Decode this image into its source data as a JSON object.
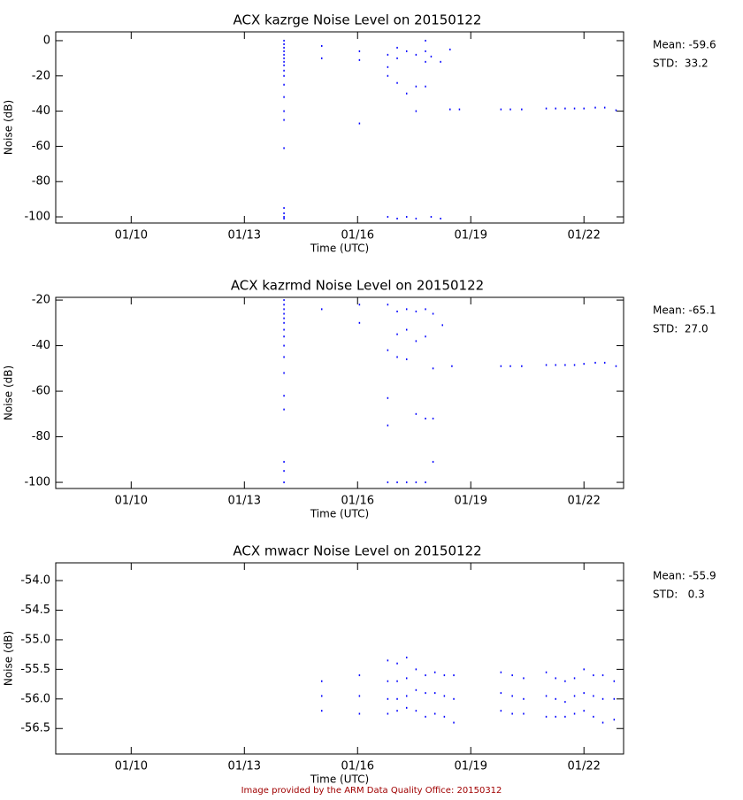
{
  "chart_data": [
    {
      "type": "scatter",
      "title": "ACX kazrge Noise Level on 20150122",
      "xlabel": "Time (UTC)",
      "ylabel": "Noise (dB)",
      "color": "#0000ff",
      "annotations": [
        "Mean: -59.6",
        "STD:  33.2"
      ],
      "xlim": [
        8,
        23.05
      ],
      "ylim": [
        -103.5,
        5
      ],
      "xticks": [
        {
          "value": 10,
          "label": "01/10"
        },
        {
          "value": 13,
          "label": "01/13"
        },
        {
          "value": 16,
          "label": "01/16"
        },
        {
          "value": 19,
          "label": "01/19"
        },
        {
          "value": 22,
          "label": "01/22"
        }
      ],
      "yticks": [
        0,
        -20,
        -40,
        -60,
        -80,
        -100
      ],
      "x": [
        14.05,
        14.05,
        14.05,
        14.05,
        14.05,
        14.05,
        14.05,
        14.05,
        14.05,
        14.05,
        14.05,
        14.05,
        14.05,
        14.05,
        14.05,
        14.05,
        14.05,
        14.05,
        14.05,
        15.05,
        15.05,
        16.05,
        16.05,
        16.05,
        16.8,
        16.8,
        16.8,
        16.8,
        17.05,
        17.05,
        17.05,
        17.05,
        17.3,
        17.3,
        17.3,
        17.55,
        17.55,
        17.55,
        17.55,
        17.8,
        17.8,
        17.8,
        17.8,
        17.95,
        17.95,
        18.2,
        18.2,
        18.45,
        18.45,
        18.7,
        19.8,
        20.05,
        20.35,
        21.0,
        21.25,
        21.5,
        21.75,
        22.0,
        22.3,
        22.55,
        22.85
      ],
      "values": [
        0,
        -2,
        -4,
        -6,
        -8,
        -10,
        -12,
        -14,
        -17,
        -20,
        -25,
        -32,
        -40,
        -45,
        -61,
        -95,
        -98,
        -100,
        -101,
        -3,
        -10,
        -6,
        -11,
        -47,
        -8,
        -15,
        -20,
        -100,
        -4,
        -10,
        -24,
        -101,
        -6,
        -30,
        -100,
        -8,
        -26,
        -40,
        -101,
        0,
        -6,
        -12,
        -26,
        -9,
        -100,
        -12,
        -101,
        -5,
        -39,
        -39,
        -39,
        -39,
        -39,
        -38.5,
        -38.5,
        -38.5,
        -38.5,
        -38.5,
        -38,
        -38,
        -39.5
      ]
    },
    {
      "type": "scatter",
      "title": "ACX kazrmd Noise Level on 20150122",
      "xlabel": "Time (UTC)",
      "ylabel": "Noise (dB)",
      "color": "#0000ff",
      "annotations": [
        "Mean: -65.1",
        "STD:  27.0"
      ],
      "xlim": [
        8,
        23.05
      ],
      "ylim": [
        -102.7,
        -18.8
      ],
      "xticks": [
        {
          "value": 10,
          "label": "01/10"
        },
        {
          "value": 13,
          "label": "01/13"
        },
        {
          "value": 16,
          "label": "01/16"
        },
        {
          "value": 19,
          "label": "01/19"
        },
        {
          "value": 22,
          "label": "01/22"
        }
      ],
      "yticks": [
        -20,
        -40,
        -60,
        -80,
        -100
      ],
      "x": [
        14.05,
        14.05,
        14.05,
        14.05,
        14.05,
        14.05,
        14.05,
        14.05,
        14.05,
        14.05,
        14.05,
        14.05,
        14.05,
        14.05,
        14.05,
        14.05,
        15.05,
        16.05,
        16.05,
        16.8,
        16.8,
        16.8,
        16.8,
        16.8,
        17.05,
        17.05,
        17.05,
        17.05,
        17.3,
        17.3,
        17.3,
        17.3,
        17.55,
        17.55,
        17.55,
        17.55,
        17.8,
        17.8,
        17.8,
        17.8,
        18.0,
        18.0,
        18.0,
        18.0,
        18.25,
        18.5,
        19.8,
        20.05,
        20.35,
        21.0,
        21.25,
        21.5,
        21.75,
        22.0,
        22.3,
        22.55,
        22.85
      ],
      "values": [
        -20,
        -22,
        -24,
        -26,
        -28,
        -30,
        -33,
        -36,
        -40,
        -45,
        -52,
        -62,
        -68,
        -91,
        -95,
        -100,
        -24,
        -22,
        -30,
        -22,
        -42,
        -63,
        -75,
        -100,
        -25,
        -35,
        -45,
        -100,
        -24,
        -33,
        -46,
        -100,
        -25,
        -38,
        -70,
        -100,
        -24,
        -36,
        -72,
        -100,
        -26,
        -50,
        -72,
        -91,
        -31,
        -49,
        -49,
        -49,
        -49,
        -48.5,
        -48.5,
        -48.5,
        -48.5,
        -48,
        -47.5,
        -47.5,
        -49
      ]
    },
    {
      "type": "scatter",
      "title": "ACX mwacr Noise Level on 20150122",
      "xlabel": "Time (UTC)",
      "ylabel": "Noise (dB)",
      "color": "#0000ff",
      "annotations": [
        "Mean: -55.9",
        "STD:   0.3"
      ],
      "xlim": [
        8,
        23.05
      ],
      "ylim": [
        -56.93,
        -53.7
      ],
      "xticks": [
        {
          "value": 10,
          "label": "01/10"
        },
        {
          "value": 13,
          "label": "01/13"
        },
        {
          "value": 16,
          "label": "01/16"
        },
        {
          "value": 19,
          "label": "01/19"
        },
        {
          "value": 22,
          "label": "01/22"
        }
      ],
      "yticks": [
        {
          "value": -54,
          "label": "-54.0"
        },
        -54.5,
        {
          "value": -55,
          "label": "-55.0"
        },
        -55.5,
        {
          "value": -56,
          "label": "-56.0"
        },
        -56.5
      ],
      "x": [
        15.05,
        15.05,
        15.05,
        16.05,
        16.05,
        16.05,
        16.8,
        16.8,
        16.8,
        16.8,
        17.05,
        17.05,
        17.05,
        17.05,
        17.3,
        17.3,
        17.3,
        17.3,
        17.55,
        17.55,
        17.55,
        17.8,
        17.8,
        17.8,
        18.05,
        18.05,
        18.05,
        18.3,
        18.3,
        18.3,
        18.55,
        18.55,
        18.55,
        19.8,
        19.8,
        19.8,
        20.1,
        20.1,
        20.1,
        20.4,
        20.4,
        20.4,
        21.0,
        21.0,
        21.0,
        21.25,
        21.25,
        21.25,
        21.5,
        21.5,
        21.5,
        21.75,
        21.75,
        21.75,
        22.0,
        22.0,
        22.0,
        22.25,
        22.25,
        22.25,
        22.5,
        22.5,
        22.5,
        22.8,
        22.8,
        22.8
      ],
      "values": [
        -55.7,
        -55.95,
        -56.2,
        -55.6,
        -55.95,
        -56.25,
        -55.35,
        -55.7,
        -56.0,
        -56.25,
        -55.4,
        -55.7,
        -56.0,
        -56.2,
        -55.3,
        -55.65,
        -55.95,
        -56.15,
        -55.5,
        -55.85,
        -56.2,
        -55.6,
        -55.9,
        -56.3,
        -55.55,
        -55.9,
        -56.25,
        -55.6,
        -55.95,
        -56.3,
        -55.6,
        -56.0,
        -56.4,
        -55.55,
        -55.9,
        -56.2,
        -55.6,
        -55.95,
        -56.25,
        -55.65,
        -56.0,
        -56.25,
        -55.55,
        -55.95,
        -56.3,
        -55.65,
        -56.0,
        -56.3,
        -55.7,
        -56.05,
        -56.3,
        -55.65,
        -55.95,
        -56.25,
        -55.5,
        -55.9,
        -56.2,
        -55.6,
        -55.95,
        -56.3,
        -55.6,
        -56.0,
        -56.4,
        -55.7,
        -56.0,
        -56.35
      ]
    }
  ],
  "footer": "Image provided by the ARM Data Quality Office: 20150312"
}
